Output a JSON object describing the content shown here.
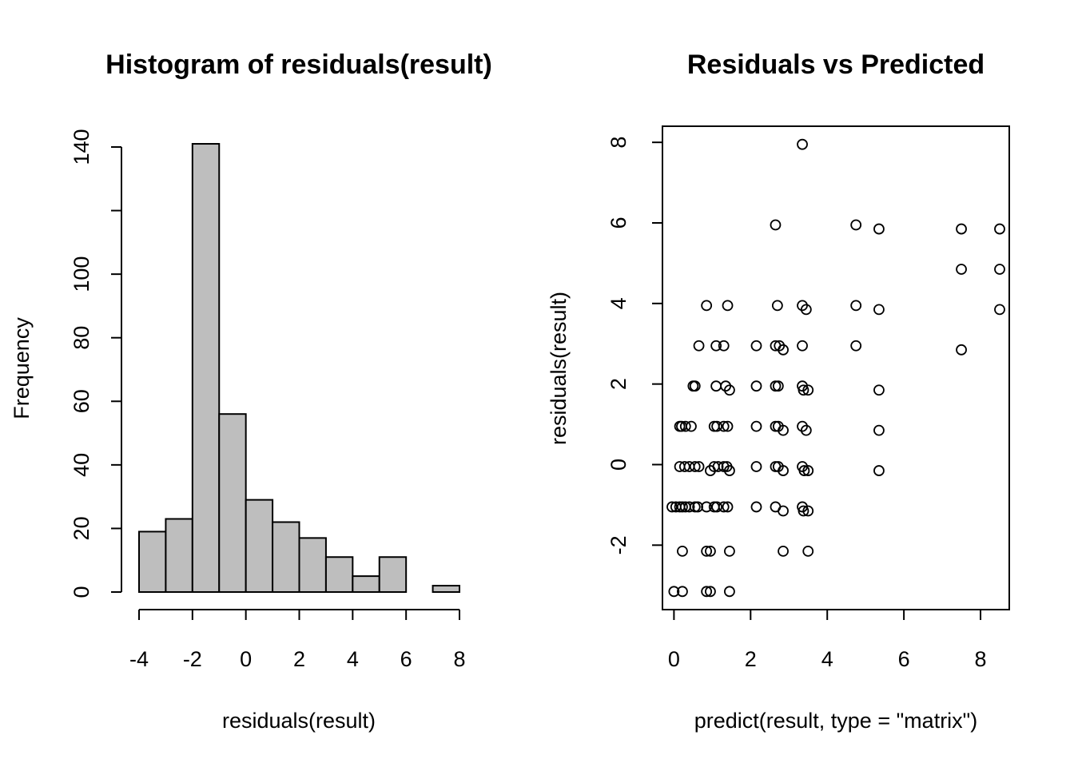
{
  "chart_data": [
    {
      "type": "bar",
      "title": "Histogram of residuals(result)",
      "xlabel": "residuals(result)",
      "ylabel": "Frequency",
      "bar_color": "#BEBEBE",
      "bins": [
        {
          "from": -4,
          "to": -3,
          "value": 19
        },
        {
          "from": -3,
          "to": -2,
          "value": 23
        },
        {
          "from": -2,
          "to": -1,
          "value": 141
        },
        {
          "from": -1,
          "to": 0,
          "value": 56
        },
        {
          "from": 0,
          "to": 1,
          "value": 29
        },
        {
          "from": 1,
          "to": 2,
          "value": 22
        },
        {
          "from": 2,
          "to": 3,
          "value": 17
        },
        {
          "from": 3,
          "to": 4,
          "value": 11
        },
        {
          "from": 4,
          "to": 5,
          "value": 5
        },
        {
          "from": 5,
          "to": 6,
          "value": 11
        },
        {
          "from": 6,
          "to": 7,
          "value": 0
        },
        {
          "from": 7,
          "to": 8,
          "value": 2
        }
      ],
      "xlim": [
        -4,
        8
      ],
      "ylim": [
        0,
        140
      ],
      "xticks": [
        "-4",
        "-2",
        "0",
        "2",
        "4",
        "6",
        "8"
      ],
      "yticks": [
        "0",
        "20",
        "40",
        "60",
        "80",
        "100",
        "140"
      ]
    },
    {
      "type": "scatter",
      "title": "Residuals vs Predicted",
      "xlabel": "predict(result, type = \"matrix\")",
      "ylabel": "residuals(result)",
      "xlim": [
        -0.3,
        8.75
      ],
      "ylim": [
        -3.6,
        8.4
      ],
      "xticks": [
        "0",
        "2",
        "4",
        "6",
        "8"
      ],
      "yticks": [
        "-2",
        "0",
        "2",
        "4",
        "6",
        "8"
      ],
      "points": [
        [
          3.35,
          7.95
        ],
        [
          2.65,
          5.95
        ],
        [
          4.75,
          5.95
        ],
        [
          5.35,
          5.85
        ],
        [
          7.5,
          5.85
        ],
        [
          8.5,
          5.85
        ],
        [
          7.5,
          4.85
        ],
        [
          8.5,
          4.85
        ],
        [
          0.85,
          3.95
        ],
        [
          1.4,
          3.95
        ],
        [
          2.7,
          3.95
        ],
        [
          3.35,
          3.95
        ],
        [
          4.75,
          3.95
        ],
        [
          3.45,
          3.85
        ],
        [
          5.35,
          3.85
        ],
        [
          8.5,
          3.85
        ],
        [
          0.65,
          2.95
        ],
        [
          1.1,
          2.95
        ],
        [
          1.3,
          2.95
        ],
        [
          2.15,
          2.95
        ],
        [
          2.65,
          2.95
        ],
        [
          2.75,
          2.95
        ],
        [
          3.35,
          2.95
        ],
        [
          4.75,
          2.95
        ],
        [
          2.85,
          2.85
        ],
        [
          7.5,
          2.85
        ],
        [
          0.5,
          1.95
        ],
        [
          0.55,
          1.95
        ],
        [
          1.1,
          1.95
        ],
        [
          1.35,
          1.95
        ],
        [
          2.15,
          1.95
        ],
        [
          2.65,
          1.95
        ],
        [
          2.72,
          1.95
        ],
        [
          3.35,
          1.95
        ],
        [
          1.45,
          1.85
        ],
        [
          3.38,
          1.85
        ],
        [
          3.5,
          1.85
        ],
        [
          5.35,
          1.85
        ],
        [
          0.15,
          0.95
        ],
        [
          0.2,
          0.95
        ],
        [
          0.3,
          0.95
        ],
        [
          0.45,
          0.95
        ],
        [
          1.05,
          0.95
        ],
        [
          1.12,
          0.95
        ],
        [
          1.3,
          0.95
        ],
        [
          1.4,
          0.95
        ],
        [
          2.15,
          0.95
        ],
        [
          2.65,
          0.95
        ],
        [
          2.72,
          0.95
        ],
        [
          3.35,
          0.95
        ],
        [
          2.85,
          0.85
        ],
        [
          3.45,
          0.85
        ],
        [
          5.35,
          0.85
        ],
        [
          0.15,
          -0.05
        ],
        [
          0.28,
          -0.05
        ],
        [
          0.4,
          -0.05
        ],
        [
          0.55,
          -0.05
        ],
        [
          0.65,
          -0.05
        ],
        [
          1.05,
          -0.05
        ],
        [
          1.15,
          -0.05
        ],
        [
          1.3,
          -0.05
        ],
        [
          1.38,
          -0.05
        ],
        [
          2.15,
          -0.05
        ],
        [
          2.65,
          -0.05
        ],
        [
          2.72,
          -0.05
        ],
        [
          3.35,
          -0.05
        ],
        [
          0.95,
          -0.15
        ],
        [
          1.45,
          -0.15
        ],
        [
          2.85,
          -0.15
        ],
        [
          3.4,
          -0.15
        ],
        [
          3.5,
          -0.15
        ],
        [
          5.35,
          -0.15
        ],
        [
          -0.05,
          -1.05
        ],
        [
          0.05,
          -1.05
        ],
        [
          0.15,
          -1.05
        ],
        [
          0.22,
          -1.05
        ],
        [
          0.3,
          -1.05
        ],
        [
          0.4,
          -1.05
        ],
        [
          0.55,
          -1.05
        ],
        [
          0.62,
          -1.05
        ],
        [
          0.85,
          -1.05
        ],
        [
          1.05,
          -1.05
        ],
        [
          1.12,
          -1.05
        ],
        [
          1.3,
          -1.05
        ],
        [
          1.4,
          -1.05
        ],
        [
          2.15,
          -1.05
        ],
        [
          2.65,
          -1.05
        ],
        [
          3.35,
          -1.05
        ],
        [
          2.85,
          -1.15
        ],
        [
          3.38,
          -1.15
        ],
        [
          3.5,
          -1.15
        ],
        [
          0.22,
          -2.15
        ],
        [
          0.85,
          -2.15
        ],
        [
          0.95,
          -2.15
        ],
        [
          1.45,
          -2.15
        ],
        [
          2.85,
          -2.15
        ],
        [
          3.5,
          -2.15
        ],
        [
          0.0,
          -3.15
        ],
        [
          0.22,
          -3.15
        ],
        [
          0.85,
          -3.15
        ],
        [
          0.95,
          -3.15
        ],
        [
          1.45,
          -3.15
        ]
      ]
    }
  ]
}
